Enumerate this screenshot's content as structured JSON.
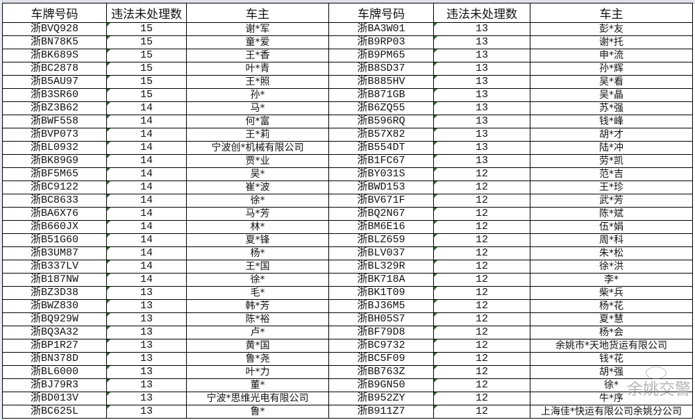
{
  "headers": [
    "车牌号码",
    "违法未处理数",
    "车主",
    "车牌号码",
    "违法未处理数",
    "车主"
  ],
  "rows": [
    [
      [
        "浙BVQ928",
        "15",
        "谢*军"
      ],
      [
        "浙BA3W01",
        "13",
        "彭*友"
      ]
    ],
    [
      [
        "浙BN78K5",
        "15",
        "童*爱"
      ],
      [
        "浙B9RP03",
        "13",
        "谢*托"
      ]
    ],
    [
      [
        "浙BK689S",
        "15",
        "王*香"
      ],
      [
        "浙B9PM65",
        "13",
        "申*流"
      ]
    ],
    [
      [
        "浙BC2878",
        "15",
        "叶*青"
      ],
      [
        "浙B8SD37",
        "13",
        "孙*辉"
      ]
    ],
    [
      [
        "浙B5AU97",
        "15",
        "王*照"
      ],
      [
        "浙B885HV",
        "13",
        "吴*看"
      ]
    ],
    [
      [
        "浙B3SR60",
        "15",
        "孙*"
      ],
      [
        "浙B871GB",
        "13",
        "吴*晶"
      ]
    ],
    [
      [
        "浙BZ3B62",
        "14",
        "马*"
      ],
      [
        "浙B6ZQ55",
        "13",
        "苏*强"
      ]
    ],
    [
      [
        "浙BWF558",
        "14",
        "何*富"
      ],
      [
        "浙B596RQ",
        "13",
        "钱*峰"
      ]
    ],
    [
      [
        "浙BVP073",
        "14",
        "王*莉"
      ],
      [
        "浙B57X82",
        "13",
        "胡*才"
      ]
    ],
    [
      [
        "浙BL0932",
        "14",
        "宁波创*机械有限公司"
      ],
      [
        "浙B554DT",
        "13",
        "陆*冲"
      ]
    ],
    [
      [
        "浙BK89G9",
        "14",
        "贾*业"
      ],
      [
        "浙B1FC67",
        "13",
        "劳*凯"
      ]
    ],
    [
      [
        "浙BF5M65",
        "14",
        "吴*"
      ],
      [
        "浙BY031S",
        "12",
        "范*吉"
      ]
    ],
    [
      [
        "浙BC9122",
        "14",
        "崔*波"
      ],
      [
        "浙BWD153",
        "12",
        "王*珍"
      ]
    ],
    [
      [
        "浙BC8633",
        "14",
        "徐*"
      ],
      [
        "浙BV671F",
        "12",
        "武*芳"
      ]
    ],
    [
      [
        "浙BA6X76",
        "14",
        "马*芳"
      ],
      [
        "浙BQ2N67",
        "12",
        "陈*斌"
      ]
    ],
    [
      [
        "浙B660JX",
        "14",
        "林*"
      ],
      [
        "浙BM6E16",
        "12",
        "伍*娟"
      ]
    ],
    [
      [
        "浙B51G60",
        "14",
        "夏*锋"
      ],
      [
        "浙BLZ659",
        "12",
        "周*科"
      ]
    ],
    [
      [
        "浙B3UM87",
        "14",
        "杨*"
      ],
      [
        "浙BLV037",
        "12",
        "朱*松"
      ]
    ],
    [
      [
        "浙B337LV",
        "14",
        "王*国"
      ],
      [
        "浙BL329R",
        "12",
        "徐*洪"
      ]
    ],
    [
      [
        "浙B187NW",
        "14",
        "徐*"
      ],
      [
        "浙BK718A",
        "12",
        "李*"
      ]
    ],
    [
      [
        "浙BZ3D38",
        "13",
        "毛*"
      ],
      [
        "浙BK1T09",
        "12",
        "柴*兵"
      ]
    ],
    [
      [
        "浙BWZ830",
        "13",
        "韩*芳"
      ],
      [
        "浙BJ36M5",
        "12",
        "杨*花"
      ]
    ],
    [
      [
        "浙BQ929W",
        "13",
        "陈*裕"
      ],
      [
        "浙BH05S7",
        "12",
        "夏*慧"
      ]
    ],
    [
      [
        "浙BQ3A32",
        "13",
        "卢*"
      ],
      [
        "浙BF79D8",
        "12",
        "杨*会"
      ]
    ],
    [
      [
        "浙BP1R27",
        "13",
        "黄*国"
      ],
      [
        "浙BC9732",
        "12",
        "余姚市*天地货运有限公司"
      ]
    ],
    [
      [
        "浙BN378D",
        "13",
        "鲁*尧"
      ],
      [
        "浙BC5F09",
        "12",
        "钱*花"
      ]
    ],
    [
      [
        "浙BL6000",
        "13",
        "叶*力"
      ],
      [
        "浙BB763Z",
        "12",
        "胡*强"
      ]
    ],
    [
      [
        "浙BJ79R3",
        "13",
        "董*"
      ],
      [
        "浙B9GN50",
        "12",
        "徐*"
      ]
    ],
    [
      [
        "浙BD013V",
        "13",
        "宁波*思维光电有限公司"
      ],
      [
        "浙B952ZY",
        "12",
        "牛*序"
      ]
    ],
    [
      [
        "浙BC625L",
        "13",
        "鲁*"
      ],
      [
        "浙B911Z7",
        "12",
        "上海佳*快运有限公司余姚分公司"
      ]
    ]
  ],
  "watermark": {
    "text": "余姚交警",
    "icon": "wechat-icon"
  }
}
